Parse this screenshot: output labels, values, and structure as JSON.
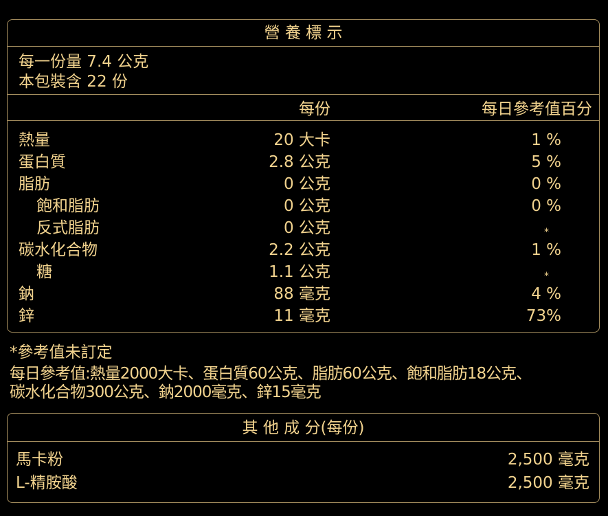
{
  "nutrition": {
    "title": "營 養 標 示",
    "serving_size": "每一份量 7.4 公克",
    "servings": "本包裝含 22 份",
    "col_per_serving": "每份",
    "col_dv": "每日參考值百分",
    "rows": [
      {
        "name": "熱量",
        "amount": "20 大卡",
        "dv": "1 %",
        "indent": false
      },
      {
        "name": "蛋白質",
        "amount": "2.8 公克",
        "dv": "5 %",
        "indent": false
      },
      {
        "name": "脂肪",
        "amount": "0 公克",
        "dv": "0 %",
        "indent": false
      },
      {
        "name": "飽和脂肪",
        "amount": "0 公克",
        "dv": "0 %",
        "indent": true
      },
      {
        "name": "反式脂肪",
        "amount": "0 公克",
        "dv": "*",
        "indent": true
      },
      {
        "name": "碳水化合物",
        "amount": "2.2 公克",
        "dv": "1 %",
        "indent": false
      },
      {
        "name": "糖",
        "amount": "1.1 公克",
        "dv": "*",
        "indent": true
      },
      {
        "name": "鈉",
        "amount": "88 毫克",
        "dv": "4 %",
        "indent": false
      },
      {
        "name": "鋅",
        "amount": "11 毫克",
        "dv": "73%",
        "indent": false
      }
    ]
  },
  "notes": {
    "line1": "*參考值未訂定",
    "line2": "每日參考值:熱量2000大卡、蛋白質60公克、脂肪60公克、飽和脂肪18公克、",
    "line3": "碳水化合物300公克、鈉2000毫克、鋅15毫克"
  },
  "other": {
    "title": "其 他 成 分(每份)",
    "rows": [
      {
        "name": "馬卡粉",
        "amount": "2,500 毫克"
      },
      {
        "name": "L-精胺酸",
        "amount": "2,500 毫克"
      }
    ]
  },
  "colors": {
    "text": "#f2d38e",
    "border": "#a48d5e",
    "background": "#000000"
  }
}
